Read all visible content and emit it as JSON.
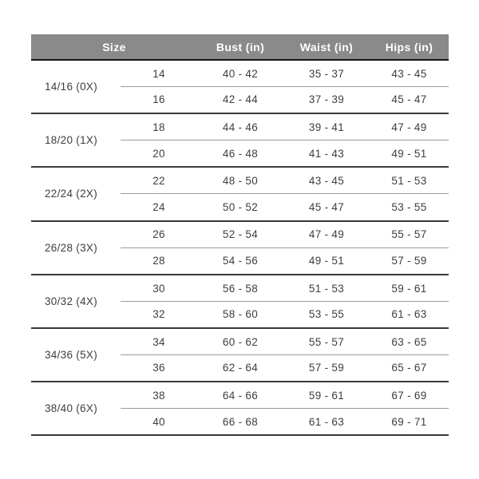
{
  "chart_data": {
    "type": "table",
    "headers": {
      "size": "Size",
      "bust": "Bust (in)",
      "waist": "Waist (in)",
      "hips": "Hips (in)"
    },
    "groups": [
      {
        "label": "14/16 (0X)",
        "rows": [
          {
            "size": "14",
            "bust": "40 - 42",
            "waist": "35 - 37",
            "hips": "43 - 45"
          },
          {
            "size": "16",
            "bust": "42 - 44",
            "waist": "37 - 39",
            "hips": "45 - 47"
          }
        ]
      },
      {
        "label": "18/20 (1X)",
        "rows": [
          {
            "size": "18",
            "bust": "44 - 46",
            "waist": "39 - 41",
            "hips": "47 - 49"
          },
          {
            "size": "20",
            "bust": "46 - 48",
            "waist": "41 - 43",
            "hips": "49 - 51"
          }
        ]
      },
      {
        "label": "22/24 (2X)",
        "rows": [
          {
            "size": "22",
            "bust": "48 - 50",
            "waist": "43 - 45",
            "hips": "51 - 53"
          },
          {
            "size": "24",
            "bust": "50 - 52",
            "waist": "45 - 47",
            "hips": "53 - 55"
          }
        ]
      },
      {
        "label": "26/28 (3X)",
        "rows": [
          {
            "size": "26",
            "bust": "52 - 54",
            "waist": "47 - 49",
            "hips": "55 - 57"
          },
          {
            "size": "28",
            "bust": "54 - 56",
            "waist": "49 - 51",
            "hips": "57 - 59"
          }
        ]
      },
      {
        "label": "30/32 (4X)",
        "rows": [
          {
            "size": "30",
            "bust": "56 - 58",
            "waist": "51 - 53",
            "hips": "59 - 61"
          },
          {
            "size": "32",
            "bust": "58 - 60",
            "waist": "53 - 55",
            "hips": "61 - 63"
          }
        ]
      },
      {
        "label": "34/36 (5X)",
        "rows": [
          {
            "size": "34",
            "bust": "60 - 62",
            "waist": "55 - 57",
            "hips": "63 - 65"
          },
          {
            "size": "36",
            "bust": "62 - 64",
            "waist": "57 - 59",
            "hips": "65 - 67"
          }
        ]
      },
      {
        "label": "38/40 (6X)",
        "rows": [
          {
            "size": "38",
            "bust": "64 - 66",
            "waist": "59 - 61",
            "hips": "67 - 69"
          },
          {
            "size": "40",
            "bust": "66 - 68",
            "waist": "61 - 63",
            "hips": "69 - 71"
          }
        ]
      }
    ]
  },
  "colors": {
    "page_bg": "#ffffff",
    "header_bg": "#8a8a8a",
    "header_text": "#ffffff",
    "header_rule": "#161616",
    "group_rule": "#3a3a3a",
    "row_rule": "#9b9b9b",
    "body_text": "#3e3e3e"
  }
}
